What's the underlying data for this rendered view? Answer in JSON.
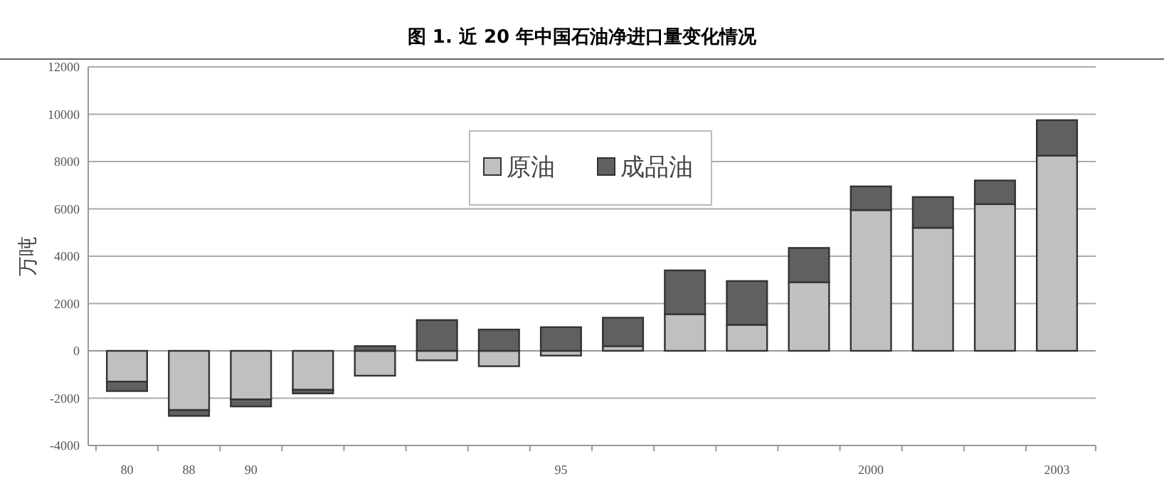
{
  "chart_data": {
    "type": "bar",
    "title": "图 1. 近 20 年中国石油净进口量变化情况",
    "ylabel": "万吨",
    "stacked": true,
    "legend": "top",
    "grid": "y",
    "categories": [
      "80",
      "88",
      "90",
      null,
      null,
      null,
      null,
      "95",
      null,
      null,
      null,
      null,
      "2000",
      null,
      null,
      "2003"
    ],
    "series": [
      {
        "name": "原油",
        "color": "#c0c0c0",
        "values": [
          -1300,
          -2500,
          -2050,
          -1650,
          -1050,
          -400,
          -650,
          -200,
          200,
          1550,
          1100,
          2900,
          5950,
          5200,
          6200,
          8250
        ]
      },
      {
        "name": "成品油",
        "color": "#606060",
        "values": [
          -400,
          -250,
          -300,
          -150,
          200,
          1300,
          900,
          1000,
          1200,
          1850,
          1850,
          1450,
          1000,
          1300,
          1000,
          1500
        ]
      }
    ],
    "ylim": [
      -4000,
      12000
    ],
    "yticks": [
      -4000,
      -2000,
      0,
      2000,
      4000,
      6000,
      8000,
      10000,
      12000
    ]
  }
}
